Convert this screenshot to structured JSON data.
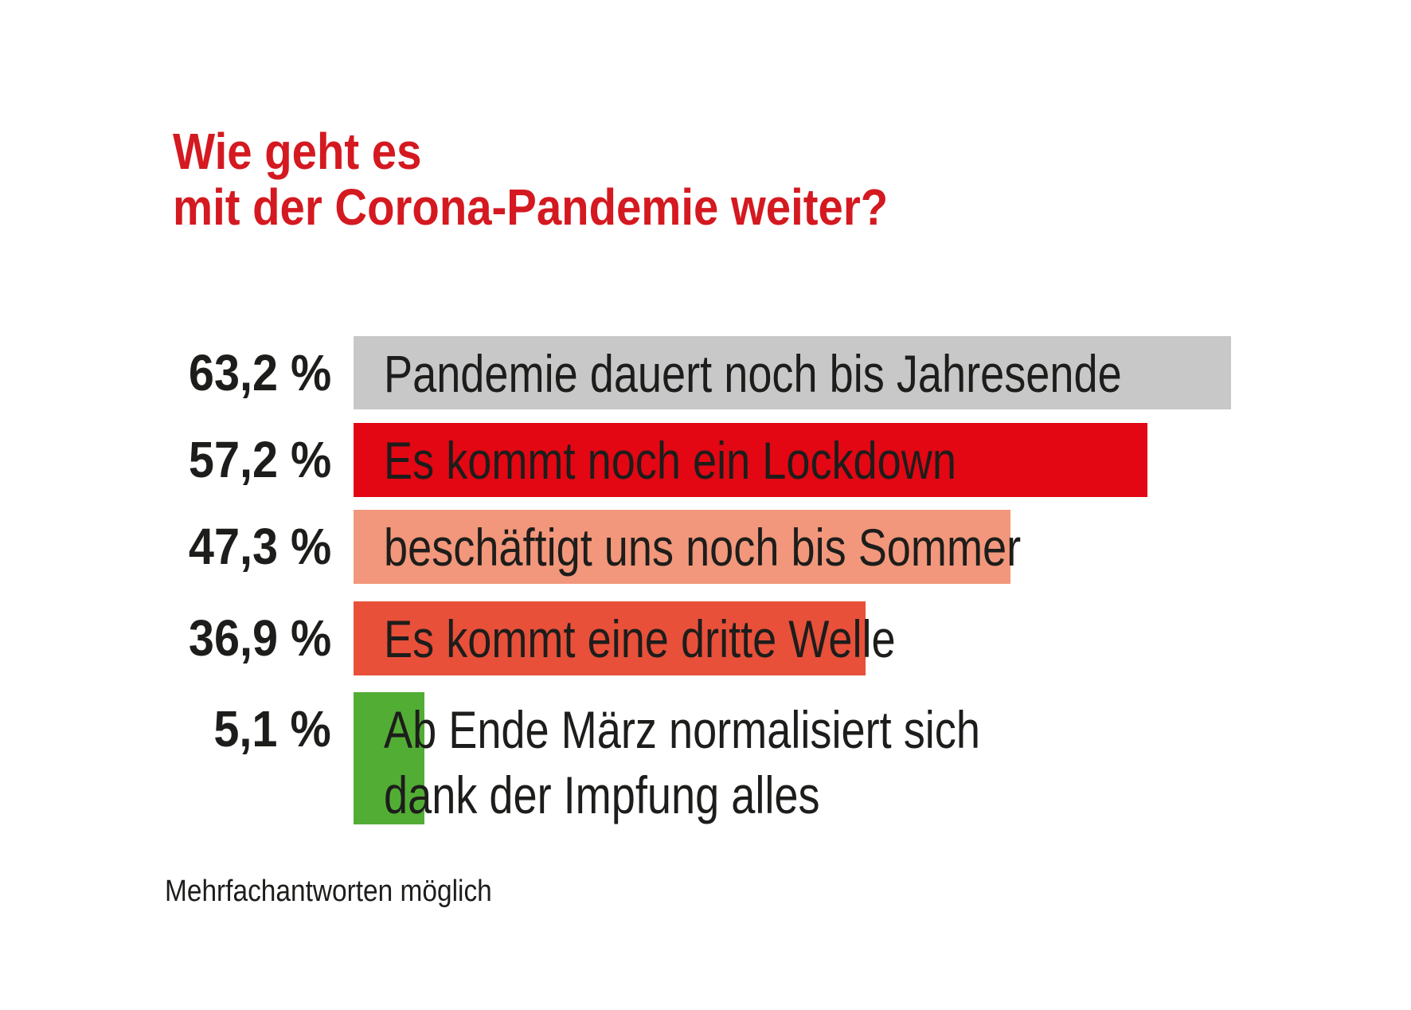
{
  "title": {
    "line1": "Wie geht es",
    "line2": "mit der Corona-Pandemie weiter?"
  },
  "footnote": "Mehrfachantworten möglich",
  "colors": {
    "title": "#d41920",
    "text": "#1d1d1b"
  },
  "chart_data": {
    "type": "bar",
    "orientation": "horizontal",
    "title": "Wie geht es mit der Corona-Pandemie weiter?",
    "xlim": [
      0,
      63.2
    ],
    "grid": false,
    "legend": "none",
    "bars": [
      {
        "value_label": "63,2 %",
        "value": 63.2,
        "label_lines": [
          "Pandemie dauert noch bis Jahresende"
        ],
        "color": "#c8c8c8"
      },
      {
        "value_label": "57,2 %",
        "value": 57.2,
        "label_lines": [
          "Es kommt noch ein Lockdown"
        ],
        "color": "#e30613"
      },
      {
        "value_label": "47,3 %",
        "value": 47.3,
        "label_lines": [
          "beschäftigt uns noch bis Sommer"
        ],
        "color": "#f2977b"
      },
      {
        "value_label": "36,9 %",
        "value": 36.9,
        "label_lines": [
          "Es kommt eine dritte Welle"
        ],
        "color": "#e8503a"
      },
      {
        "value_label": "5,1 %",
        "value": 5.1,
        "label_lines": [
          "Ab Ende März normalisiert sich",
          "dank der Impfung alles"
        ],
        "color": "#52ad35"
      }
    ]
  }
}
